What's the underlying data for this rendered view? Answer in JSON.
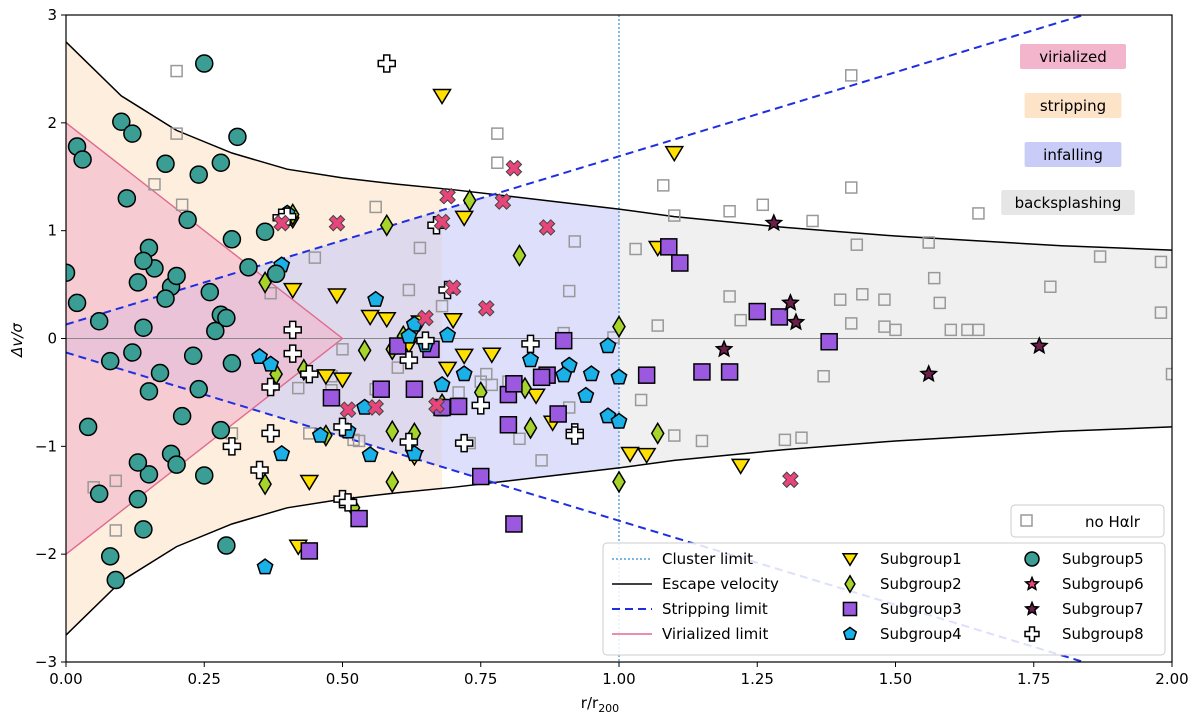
{
  "chart_data": {
    "type": "scatter",
    "title": "",
    "xlabel": "r/r",
    "xlabel_sub": "200",
    "ylabel": "Δv/σ",
    "xlim": [
      0,
      2
    ],
    "ylim": [
      -3,
      3
    ],
    "xticks": [
      0,
      0.25,
      0.5,
      0.75,
      1,
      1.25,
      1.5,
      1.75,
      2
    ],
    "xtick_labels": [
      "0.00",
      "0.25",
      "0.50",
      "0.75",
      "1.00",
      "1.25",
      "1.50",
      "1.75",
      "2.00"
    ],
    "yticks": [
      -3,
      -2,
      -1,
      0,
      1,
      2,
      3
    ],
    "ytick_labels": [
      "−3",
      "−2",
      "−1",
      "0",
      "1",
      "2",
      "3"
    ],
    "grid": false,
    "legend_position": "lower-right",
    "regions": [
      {
        "label": "virialized",
        "color": "#f2b5cb"
      },
      {
        "label": "stripping",
        "color": "#fde3c8"
      },
      {
        "label": "infalling",
        "color": "#c9ccf7"
      },
      {
        "label": "backsplashing",
        "color": "#e6e6e6"
      }
    ],
    "nohalr_legend": "no Hαlr",
    "reference_lines": {
      "cluster_limit": {
        "label": "Cluster limit",
        "x": 1.0,
        "color": "#4f9fd9"
      },
      "escape_velocity": {
        "label": "Escape velocity",
        "color": "#000000",
        "points": [
          [
            0.0,
            2.75
          ],
          [
            0.1,
            2.25
          ],
          [
            0.2,
            1.93
          ],
          [
            0.3,
            1.72
          ],
          [
            0.4,
            1.57
          ],
          [
            0.5,
            1.49
          ],
          [
            0.6,
            1.43
          ],
          [
            0.7,
            1.38
          ],
          [
            0.8,
            1.32
          ],
          [
            0.9,
            1.26
          ],
          [
            1.0,
            1.2
          ],
          [
            1.1,
            1.13
          ],
          [
            1.2,
            1.08
          ],
          [
            1.3,
            1.03
          ],
          [
            1.4,
            0.99
          ],
          [
            1.5,
            0.95
          ],
          [
            1.6,
            0.92
          ],
          [
            1.7,
            0.89
          ],
          [
            1.8,
            0.86
          ],
          [
            1.9,
            0.84
          ],
          [
            2.0,
            0.82
          ]
        ]
      },
      "stripping_limit": {
        "label": "Stripping limit",
        "color": "#1f2fe0",
        "start": [
          0.0,
          0.13
        ],
        "end": [
          1.84,
          3.0
        ]
      },
      "virialized_limit": {
        "label": "Virialized limit",
        "color": "#e06a8d",
        "points": [
          [
            0.0,
            2.0
          ],
          [
            0.5,
            0.0
          ],
          [
            0.0,
            -2.0
          ]
        ]
      }
    },
    "series": [
      {
        "name": "Subgroup1",
        "marker": "triangle-down",
        "color": "#ffe000",
        "points": [
          [
            0.68,
            2.25
          ],
          [
            1.1,
            1.72
          ],
          [
            0.72,
            1.12
          ],
          [
            1.07,
            0.84
          ],
          [
            0.41,
            0.45
          ],
          [
            0.49,
            0.4
          ],
          [
            0.55,
            0.2
          ],
          [
            0.58,
            0.18
          ],
          [
            0.64,
            0.15
          ],
          [
            0.7,
            0.17
          ],
          [
            0.62,
            -0.06
          ],
          [
            0.72,
            -0.16
          ],
          [
            0.77,
            -0.15
          ],
          [
            0.69,
            -0.28
          ],
          [
            0.47,
            -0.35
          ],
          [
            0.5,
            -0.38
          ],
          [
            0.85,
            -0.53
          ],
          [
            0.88,
            -0.78
          ],
          [
            0.63,
            -1.1
          ],
          [
            1.02,
            -1.07
          ],
          [
            1.05,
            -1.08
          ],
          [
            1.22,
            -1.18
          ],
          [
            0.44,
            -1.33
          ],
          [
            0.42,
            -1.93
          ]
        ]
      },
      {
        "name": "Subgroup2",
        "marker": "diamond",
        "color": "#a6d42a",
        "points": [
          [
            0.41,
            1.12
          ],
          [
            0.41,
            1.15
          ],
          [
            0.58,
            1.05
          ],
          [
            0.73,
            1.28
          ],
          [
            0.82,
            0.77
          ],
          [
            0.36,
            0.52
          ],
          [
            0.63,
            0.1
          ],
          [
            0.61,
            0.02
          ],
          [
            0.54,
            -0.11
          ],
          [
            0.59,
            -0.1
          ],
          [
            1.0,
            0.11
          ],
          [
            0.38,
            -0.33
          ],
          [
            0.75,
            -0.5
          ],
          [
            0.68,
            -0.61
          ],
          [
            0.47,
            -0.9
          ],
          [
            0.59,
            -0.86
          ],
          [
            0.63,
            -0.88
          ],
          [
            0.84,
            -0.83
          ],
          [
            0.59,
            -1.33
          ],
          [
            0.83,
            -0.46
          ],
          [
            1.07,
            -0.88
          ],
          [
            0.52,
            -1.57
          ],
          [
            1.0,
            -1.33
          ],
          [
            0.36,
            -1.35
          ],
          [
            0.43,
            -0.29
          ]
        ]
      },
      {
        "name": "Subgroup3",
        "marker": "square",
        "color": "#9b59e0",
        "points": [
          [
            1.09,
            0.85
          ],
          [
            1.11,
            0.7
          ],
          [
            1.25,
            0.25
          ],
          [
            1.29,
            0.2
          ],
          [
            1.38,
            -0.03
          ],
          [
            0.6,
            -0.07
          ],
          [
            0.66,
            -0.1
          ],
          [
            0.9,
            -0.02
          ],
          [
            0.48,
            -0.55
          ],
          [
            0.57,
            -0.47
          ],
          [
            0.63,
            -0.47
          ],
          [
            0.8,
            -0.52
          ],
          [
            0.81,
            -0.42
          ],
          [
            0.87,
            -0.34
          ],
          [
            0.86,
            -0.36
          ],
          [
            1.05,
            -0.34
          ],
          [
            1.15,
            -0.31
          ],
          [
            1.2,
            -0.31
          ],
          [
            0.68,
            -0.64
          ],
          [
            0.71,
            -0.63
          ],
          [
            0.8,
            -0.8
          ],
          [
            0.89,
            -0.7
          ],
          [
            0.75,
            -1.28
          ],
          [
            0.53,
            -1.67
          ],
          [
            0.81,
            -1.72
          ],
          [
            0.44,
            -1.97
          ]
        ]
      },
      {
        "name": "Subgroup4",
        "marker": "pentagon",
        "color": "#1ab0e8",
        "points": [
          [
            0.4,
            1.16
          ],
          [
            0.39,
            0.68
          ],
          [
            0.56,
            0.36
          ],
          [
            0.63,
            0.13
          ],
          [
            0.62,
            0.02
          ],
          [
            0.69,
            0.03
          ],
          [
            0.65,
            -0.06
          ],
          [
            0.72,
            -0.33
          ],
          [
            0.84,
            -0.2
          ],
          [
            0.91,
            -0.25
          ],
          [
            0.95,
            -0.33
          ],
          [
            0.98,
            -0.07
          ],
          [
            1.0,
            -0.36
          ],
          [
            0.9,
            -0.34
          ],
          [
            0.94,
            -0.53
          ],
          [
            0.35,
            -0.17
          ],
          [
            0.37,
            -0.24
          ],
          [
            0.54,
            -0.64
          ],
          [
            0.46,
            -0.9
          ],
          [
            0.51,
            -0.86
          ],
          [
            0.55,
            -1.08
          ],
          [
            0.39,
            -1.07
          ],
          [
            0.98,
            -0.72
          ],
          [
            1.0,
            -0.77
          ],
          [
            0.63,
            -1.07
          ],
          [
            0.68,
            -0.43
          ],
          [
            0.36,
            -2.12
          ]
        ]
      },
      {
        "name": "Subgroup5",
        "marker": "circle",
        "color": "#3a9e94",
        "points": [
          [
            0.02,
            1.78
          ],
          [
            0.03,
            1.66
          ],
          [
            0.1,
            2.01
          ],
          [
            0.12,
            1.9
          ],
          [
            0.25,
            2.55
          ],
          [
            0.31,
            1.87
          ],
          [
            0.18,
            1.62
          ],
          [
            0.24,
            1.52
          ],
          [
            0.28,
            1.63
          ],
          [
            0.11,
            1.3
          ],
          [
            0.22,
            1.1
          ],
          [
            0.3,
            0.92
          ],
          [
            0.36,
            0.99
          ],
          [
            0.15,
            0.84
          ],
          [
            0.16,
            0.65
          ],
          [
            0.13,
            0.52
          ],
          [
            0.14,
            0.72
          ],
          [
            0.19,
            0.48
          ],
          [
            0.2,
            0.58
          ],
          [
            0.26,
            0.43
          ],
          [
            0.18,
            0.37
          ],
          [
            0.33,
            0.66
          ],
          [
            0.38,
            0.6
          ],
          [
            0.0,
            0.61
          ],
          [
            0.02,
            0.33
          ],
          [
            0.06,
            0.16
          ],
          [
            0.14,
            0.1
          ],
          [
            0.28,
            0.22
          ],
          [
            0.29,
            0.19
          ],
          [
            0.27,
            0.07
          ],
          [
            0.3,
            -0.23
          ],
          [
            0.23,
            -0.16
          ],
          [
            0.12,
            -0.13
          ],
          [
            0.08,
            -0.21
          ],
          [
            0.15,
            -0.49
          ],
          [
            0.17,
            -0.32
          ],
          [
            0.21,
            -0.72
          ],
          [
            0.24,
            -0.47
          ],
          [
            0.19,
            -1.07
          ],
          [
            0.15,
            -1.26
          ],
          [
            0.13,
            -1.15
          ],
          [
            0.2,
            -1.17
          ],
          [
            0.25,
            -1.27
          ],
          [
            0.04,
            -0.82
          ],
          [
            0.06,
            -1.44
          ],
          [
            0.13,
            -1.49
          ],
          [
            0.14,
            -1.77
          ],
          [
            0.08,
            -2.02
          ],
          [
            0.09,
            -2.24
          ],
          [
            0.29,
            -1.92
          ],
          [
            0.28,
            -0.85
          ]
        ]
      },
      {
        "name": "Subgroup6",
        "marker": "star",
        "color": "#e8457a",
        "points": []
      },
      {
        "name": "Subgroup7",
        "marker": "star",
        "color": "#6b1f4a",
        "points": [
          [
            1.28,
            1.07
          ],
          [
            1.31,
            0.33
          ],
          [
            1.32,
            0.15
          ],
          [
            1.19,
            -0.1
          ],
          [
            1.56,
            -0.33
          ],
          [
            1.76,
            -0.07
          ]
        ]
      },
      {
        "name": "Subgroup8",
        "marker": "plus",
        "color": "#ffffff",
        "points": [
          [
            0.58,
            2.55
          ],
          [
            0.39,
            1.12
          ],
          [
            0.4,
            1.13
          ],
          [
            0.67,
            1.05
          ],
          [
            0.41,
            0.08
          ],
          [
            0.41,
            -0.14
          ],
          [
            0.37,
            -0.45
          ],
          [
            0.44,
            -0.33
          ],
          [
            0.62,
            -0.2
          ],
          [
            0.65,
            -0.02
          ],
          [
            0.69,
            0.45
          ],
          [
            0.37,
            -0.88
          ],
          [
            0.3,
            -1.0
          ],
          [
            0.35,
            -1.22
          ],
          [
            0.5,
            -0.82
          ],
          [
            0.5,
            -1.49
          ],
          [
            0.51,
            -1.52
          ],
          [
            0.62,
            -0.96
          ],
          [
            0.72,
            -0.97
          ],
          [
            0.75,
            -0.62
          ],
          [
            0.84,
            -0.05
          ],
          [
            0.92,
            -0.87
          ],
          [
            0.92,
            -0.9
          ]
        ]
      },
      {
        "name": "Subgroup6-cross",
        "marker": "x",
        "color": "#e8457a",
        "points": [
          [
            0.81,
            1.58
          ],
          [
            0.69,
            1.32
          ],
          [
            0.79,
            1.27
          ],
          [
            0.87,
            1.03
          ],
          [
            0.68,
            1.08
          ],
          [
            0.39,
            1.07
          ],
          [
            0.49,
            1.07
          ],
          [
            0.76,
            0.28
          ],
          [
            0.7,
            0.47
          ],
          [
            0.65,
            0.19
          ],
          [
            0.51,
            -0.66
          ],
          [
            0.56,
            -0.64
          ],
          [
            0.67,
            -0.62
          ],
          [
            1.31,
            -1.31
          ]
        ]
      }
    ],
    "nohalr_points": [
      [
        0.2,
        2.48
      ],
      [
        0.2,
        1.9
      ],
      [
        0.21,
        1.24
      ],
      [
        0.16,
        1.43
      ],
      [
        0.78,
        1.63
      ],
      [
        0.78,
        1.9
      ],
      [
        0.92,
        0.9
      ],
      [
        0.91,
        0.44
      ],
      [
        0.68,
        0.3
      ],
      [
        0.62,
        0.45
      ],
      [
        0.64,
        0.84
      ],
      [
        0.56,
        1.22
      ],
      [
        0.45,
        0.75
      ],
      [
        0.37,
        0.42
      ],
      [
        1.08,
        1.42
      ],
      [
        1.1,
        1.14
      ],
      [
        1.03,
        0.83
      ],
      [
        1.07,
        0.12
      ],
      [
        1.2,
        1.18
      ],
      [
        1.26,
        1.24
      ],
      [
        1.35,
        1.09
      ],
      [
        1.42,
        1.4
      ],
      [
        1.43,
        0.87
      ],
      [
        1.44,
        0.41
      ],
      [
        1.48,
        0.11
      ],
      [
        1.5,
        0.08
      ],
      [
        1.56,
        0.89
      ],
      [
        1.57,
        0.56
      ],
      [
        1.58,
        0.33
      ],
      [
        1.6,
        0.08
      ],
      [
        1.63,
        0.08
      ],
      [
        1.65,
        0.08
      ],
      [
        1.65,
        1.16
      ],
      [
        1.78,
        0.48
      ],
      [
        1.87,
        0.76
      ],
      [
        1.98,
        0.71
      ],
      [
        1.98,
        0.24
      ],
      [
        2.0,
        -0.33
      ],
      [
        1.2,
        0.39
      ],
      [
        1.22,
        0.17
      ],
      [
        1.3,
        -0.94
      ],
      [
        1.37,
        -0.35
      ],
      [
        1.42,
        0.14
      ],
      [
        1.48,
        0.36
      ],
      [
        1.04,
        -0.57
      ],
      [
        1.1,
        -0.9
      ],
      [
        1.15,
        -0.95
      ],
      [
        0.86,
        -1.13
      ],
      [
        0.82,
        -0.93
      ],
      [
        0.73,
        -0.97
      ],
      [
        0.68,
        -0.67
      ],
      [
        0.71,
        -0.5
      ],
      [
        0.75,
        -0.4
      ],
      [
        0.76,
        -0.33
      ],
      [
        0.77,
        -0.43
      ],
      [
        0.8,
        -0.4
      ],
      [
        0.9,
        0.05
      ],
      [
        0.91,
        -0.64
      ],
      [
        0.99,
        0.01
      ],
      [
        0.5,
        -0.1
      ],
      [
        0.52,
        -0.94
      ],
      [
        0.53,
        -0.95
      ],
      [
        0.48,
        -0.35
      ],
      [
        0.48,
        -0.48
      ],
      [
        0.44,
        -0.88
      ],
      [
        0.42,
        -0.46
      ],
      [
        0.3,
        -0.88
      ],
      [
        0.09,
        -1.32
      ],
      [
        0.09,
        -1.78
      ],
      [
        0.05,
        -1.38
      ],
      [
        1.42,
        2.44
      ],
      [
        1.4,
        0.36
      ],
      [
        1.33,
        -0.92
      ],
      [
        0.6,
        -0.27
      ],
      [
        0.56,
        -0.47
      ]
    ]
  }
}
